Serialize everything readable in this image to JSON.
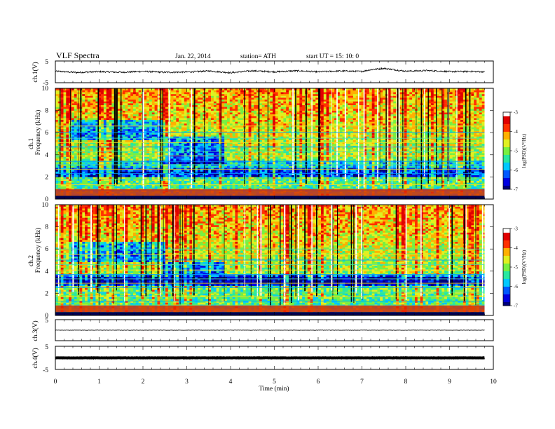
{
  "header": {
    "title": "VLF  Spectra",
    "date": "Jan. 22, 2014",
    "station": "station= ATH",
    "start": "start  UT =   15: 10: 0"
  },
  "colors": {
    "cmap": [
      "#00007a",
      "#0000e0",
      "#0058ff",
      "#00c8ff",
      "#28e8a0",
      "#78f040",
      "#e0f020",
      "#ffb000",
      "#ff3000",
      "#e00000",
      "#ffffff"
    ],
    "trace": "#000000"
  },
  "chart_data": [
    {
      "type": "line",
      "panel": "ch1-waveform",
      "ylabel": "ch.1(V)",
      "ylim": [
        -5,
        5
      ],
      "yticks": [
        "5",
        "-5"
      ],
      "x": [
        0,
        0.5,
        1,
        1.5,
        2,
        2.5,
        3,
        3.5,
        4,
        4.5,
        5,
        5.5,
        6,
        6.5,
        7,
        7.2,
        7.5,
        8,
        8.5,
        9,
        9.5,
        9.8
      ],
      "y": [
        0.3,
        -0.3,
        0.1,
        -0.2,
        0.2,
        -0.2,
        -0.1,
        0.4,
        -0.4,
        0.5,
        0.0,
        0.5,
        0.0,
        0.4,
        0.2,
        1.0,
        1.6,
        0.3,
        0.6,
        0.1,
        0.2,
        0.0
      ]
    },
    {
      "type": "heatmap",
      "panel": "ch1-spectrogram",
      "ylabel": [
        "ch.1",
        "Frequency  (kHz)"
      ],
      "ylim": [
        0,
        10
      ],
      "yticks": [
        "0",
        "2",
        "4",
        "6",
        "8",
        "10"
      ],
      "colorbar": {
        "label": "log(PSD)(V²/Hz)",
        "range": [
          -7,
          -3
        ],
        "ticks": [
          "-3",
          "-4",
          "-5",
          "-6",
          "-7"
        ]
      },
      "lines_khz": [
        0.3,
        0.55,
        0.8,
        1.3,
        1.8,
        2.3,
        2.7,
        3.1,
        3.4,
        3.9,
        4.3,
        4.7,
        5.1,
        5.5,
        6.0,
        6.6
      ],
      "quiet_bands": [
        {
          "t": [
            2.45,
            3.8
          ],
          "f": [
            3.1,
            5.5
          ]
        },
        {
          "t": [
            0.0,
            9.8
          ],
          "f": [
            2.0,
            2.8
          ]
        },
        {
          "t": [
            0.3,
            2.5
          ],
          "f": [
            5.2,
            7.0
          ]
        }
      ]
    },
    {
      "type": "heatmap",
      "panel": "ch2-spectrogram",
      "ylabel": [
        "ch.2",
        "Frequency  (kHz)"
      ],
      "ylim": [
        0,
        10
      ],
      "yticks": [
        "0",
        "2",
        "4",
        "6",
        "8",
        "10"
      ],
      "colorbar": {
        "label": "log(PSD)(V²/Hz)",
        "range": [
          -7,
          -3
        ],
        "ticks": [
          "-3",
          "-4",
          "-5",
          "-6",
          "-7"
        ]
      },
      "lines_khz": [
        0.5,
        0.9,
        1.3,
        1.7,
        2.1,
        2.5,
        2.9,
        3.3,
        3.7,
        4.1,
        4.6,
        5.0,
        5.5,
        6.0
      ],
      "quiet_bands": [
        {
          "t": [
            2.45,
            3.8
          ],
          "f": [
            3.0,
            4.8
          ]
        },
        {
          "t": [
            0.0,
            9.8
          ],
          "f": [
            2.6,
            3.6
          ]
        },
        {
          "t": [
            0.3,
            2.5
          ],
          "f": [
            4.8,
            6.5
          ]
        }
      ]
    },
    {
      "type": "line",
      "panel": "ch3-waveform",
      "ylabel": "ch.3(V)",
      "ylim": [
        -5,
        5
      ],
      "yticks": [
        "5",
        "-5"
      ],
      "x": [
        0,
        9.8
      ],
      "y": [
        0,
        0
      ]
    },
    {
      "type": "line",
      "panel": "ch4-waveform",
      "ylabel": "ch.4(V)",
      "ylim": [
        -5,
        5
      ],
      "yticks": [
        "5",
        "-5"
      ],
      "x": [
        0,
        9.8
      ],
      "y": [
        0,
        0
      ]
    }
  ],
  "xaxis": {
    "label": "Time  (min)",
    "range": [
      0,
      10
    ],
    "ticks": [
      "0",
      "1",
      "2",
      "3",
      "4",
      "5",
      "6",
      "7",
      "8",
      "9",
      "10"
    ]
  }
}
